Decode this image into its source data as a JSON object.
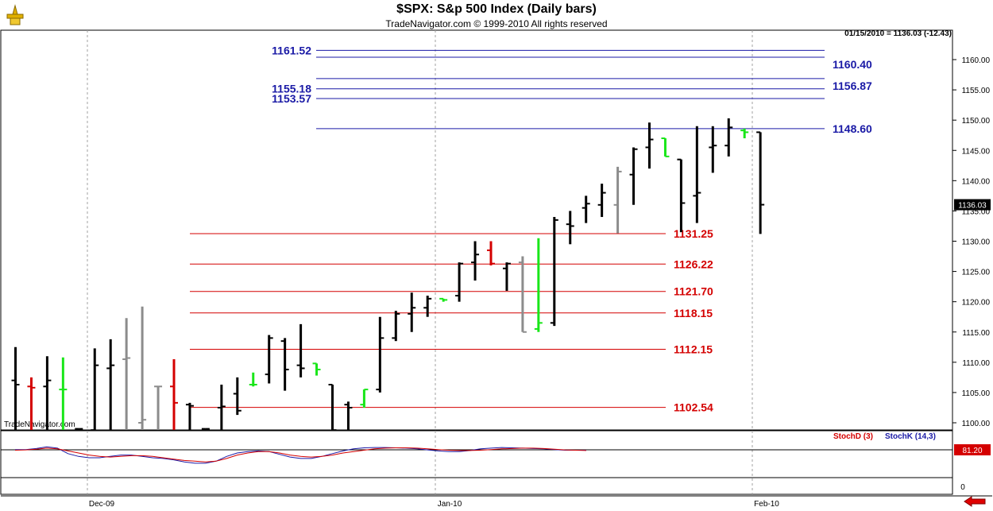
{
  "header": {
    "title": "$SPX:  S&p 500 Index  (Daily bars)",
    "subtitle": "TradeNavigator.com © 1999-2010 All rights reserved",
    "quote": "01/15/2010 = 1136.03 (-12.43)",
    "watermark": "TradeNavigator.com"
  },
  "chart_data": {
    "type": "ohlc",
    "ylim": [
      1098,
      1166
    ],
    "yticks": [
      "1100.00",
      "1105.00",
      "1110.00",
      "1115.00",
      "1120.00",
      "1125.00",
      "1130.00",
      "1135.00",
      "1140.00",
      "1145.00",
      "1150.00",
      "1155.00",
      "1160.00"
    ],
    "xlabels": [
      "Dec-09",
      "Jan-10",
      "Feb-10"
    ],
    "last_price_label": "1136.03",
    "bars": [
      {
        "o": 1107,
        "h": 1112.5,
        "l": 1098,
        "c": 1106.3,
        "color": "black"
      },
      {
        "o": 1106,
        "h": 1107.5,
        "l": 1098,
        "c": 1105.8,
        "color": "red"
      },
      {
        "o": 1106,
        "h": 1111,
        "l": 1098,
        "c": 1107,
        "color": "black"
      },
      {
        "o": 1105.5,
        "h": 1110.8,
        "l": 1098,
        "c": 1105.5,
        "color": "green"
      },
      {
        "o": 1099,
        "h": 1099,
        "l": 1098,
        "c": 1099,
        "color": "black"
      },
      {
        "o": 1098.8,
        "h": 1112.3,
        "l": 1098,
        "c": 1109.5,
        "color": "black"
      },
      {
        "o": 1109,
        "h": 1113.8,
        "l": 1098,
        "c": 1109.5,
        "color": "black"
      },
      {
        "o": 1110.5,
        "h": 1117.3,
        "l": 1098,
        "c": 1110.7,
        "color": "gray"
      },
      {
        "o": 1100,
        "h": 1119.2,
        "l": 1098,
        "c": 1100.5,
        "color": "gray"
      },
      {
        "o": 1106,
        "h": 1106,
        "l": 1098,
        "c": 1106,
        "color": "gray"
      },
      {
        "o": 1106,
        "h": 1110.5,
        "l": 1098,
        "c": 1103.3,
        "color": "red"
      },
      {
        "o": 1103,
        "h": 1103.3,
        "l": 1098,
        "c": 1102.8,
        "color": "black"
      },
      {
        "o": 1099,
        "h": 1099,
        "l": 1098,
        "c": 1099,
        "color": "black"
      },
      {
        "o": 1102.5,
        "h": 1106.3,
        "l": 1098,
        "c": 1102.7,
        "color": "black"
      },
      {
        "o": 1104.8,
        "h": 1107.5,
        "l": 1101.3,
        "c": 1102,
        "color": "black"
      },
      {
        "o": 1106.3,
        "h": 1108.3,
        "l": 1106,
        "c": 1106.3,
        "color": "green"
      },
      {
        "o": 1108,
        "h": 1114.5,
        "l": 1106.5,
        "c": 1114,
        "color": "black"
      },
      {
        "o": 1113.5,
        "h": 1114,
        "l": 1105.3,
        "c": 1108.8,
        "color": "black"
      },
      {
        "o": 1109.5,
        "h": 1116.3,
        "l": 1107.5,
        "c": 1109,
        "color": "black"
      },
      {
        "o": 1109.8,
        "h": 1109.8,
        "l": 1107.8,
        "c": 1108.8,
        "color": "green"
      },
      {
        "o": 1106.3,
        "h": 1106.3,
        "l": 1098,
        "c": 1098.8,
        "color": "black"
      },
      {
        "o": 1103,
        "h": 1103.5,
        "l": 1098,
        "c": 1102.5,
        "color": "black"
      },
      {
        "o": 1103,
        "h": 1105.5,
        "l": 1102.5,
        "c": 1105.5,
        "color": "green"
      },
      {
        "o": 1105.5,
        "h": 1117.5,
        "l": 1105,
        "c": 1114,
        "color": "black"
      },
      {
        "o": 1114,
        "h": 1118.5,
        "l": 1113.5,
        "c": 1118,
        "color": "black"
      },
      {
        "o": 1118,
        "h": 1121.5,
        "l": 1115,
        "c": 1119,
        "color": "black"
      },
      {
        "o": 1119,
        "h": 1121,
        "l": 1117.5,
        "c": 1120.5,
        "color": "black"
      },
      {
        "o": 1120.5,
        "h": 1120.5,
        "l": 1120,
        "c": 1120.3,
        "color": "green"
      },
      {
        "o": 1121,
        "h": 1126.5,
        "l": 1120,
        "c": 1126.3,
        "color": "black"
      },
      {
        "o": 1126.5,
        "h": 1130,
        "l": 1123.5,
        "c": 1127.8,
        "color": "black"
      },
      {
        "o": 1128.5,
        "h": 1130,
        "l": 1126,
        "c": 1126.3,
        "color": "red"
      },
      {
        "o": 1125.5,
        "h": 1126.5,
        "l": 1121.8,
        "c": 1126.3,
        "color": "black"
      },
      {
        "o": 1126.5,
        "h": 1127.5,
        "l": 1115,
        "c": 1115,
        "color": "gray"
      },
      {
        "o": 1115.5,
        "h": 1130.5,
        "l": 1115,
        "c": 1116.5,
        "color": "green"
      },
      {
        "o": 1116.5,
        "h": 1134,
        "l": 1116,
        "c": 1133.5,
        "color": "black"
      },
      {
        "o": 1132.8,
        "h": 1135,
        "l": 1129.5,
        "c": 1132.5,
        "color": "black"
      },
      {
        "o": 1135.5,
        "h": 1137.5,
        "l": 1133,
        "c": 1136.2,
        "color": "black"
      },
      {
        "o": 1136,
        "h": 1139.5,
        "l": 1134,
        "c": 1138,
        "color": "black"
      },
      {
        "o": 1136,
        "h": 1142.3,
        "l": 1131.3,
        "c": 1141.5,
        "color": "gray"
      },
      {
        "o": 1141,
        "h": 1145.5,
        "l": 1136,
        "c": 1145.2,
        "color": "black"
      },
      {
        "o": 1145.5,
        "h": 1149.6,
        "l": 1142,
        "c": 1146.8,
        "color": "black"
      },
      {
        "o": 1147,
        "h": 1147,
        "l": 1144,
        "c": 1144,
        "color": "green"
      },
      {
        "o": 1143.5,
        "h": 1143.5,
        "l": 1131.5,
        "c": 1136.3,
        "color": "black"
      },
      {
        "o": 1137.5,
        "h": 1149,
        "l": 1133,
        "c": 1138,
        "color": "black"
      },
      {
        "o": 1145.5,
        "h": 1149,
        "l": 1141.3,
        "c": 1145.8,
        "color": "black"
      },
      {
        "o": 1145.8,
        "h": 1150.3,
        "l": 1144,
        "c": 1148.8,
        "color": "black"
      },
      {
        "o": 1148.3,
        "h": 1148.6,
        "l": 1147,
        "c": 1148,
        "color": "green"
      },
      {
        "o": 1148,
        "h": 1148,
        "l": 1131.2,
        "c": 1136.03,
        "color": "black"
      }
    ],
    "levels": [
      {
        "value": 1161.52,
        "label": "1161.52",
        "color": "blue",
        "label_side": "left"
      },
      {
        "value": 1160.4,
        "label": "1160.40",
        "color": "blue",
        "label_side": "right"
      },
      {
        "value": 1156.87,
        "label": "1156.87",
        "color": "blue",
        "label_side": "right"
      },
      {
        "value": 1155.18,
        "label": "1155.18",
        "color": "blue",
        "label_side": "left"
      },
      {
        "value": 1153.57,
        "label": "1153.57",
        "color": "blue",
        "label_side": "left"
      },
      {
        "value": 1148.6,
        "label": "1148.60",
        "color": "blue",
        "label_side": "right"
      },
      {
        "value": 1131.25,
        "label": "1131.25",
        "color": "red",
        "label_side": "right"
      },
      {
        "value": 1126.22,
        "label": "1126.22",
        "color": "red",
        "label_side": "right"
      },
      {
        "value": 1121.7,
        "label": "1121.70",
        "color": "red",
        "label_side": "right"
      },
      {
        "value": 1118.15,
        "label": "1118.15",
        "color": "red",
        "label_side": "right"
      },
      {
        "value": 1112.15,
        "label": "1112.15",
        "color": "red",
        "label_side": "right"
      },
      {
        "value": 1102.54,
        "label": "1102.54",
        "color": "red",
        "label_side": "right"
      }
    ],
    "stochastic": {
      "stochd_label": "StochD (3)",
      "stochk_label": "StochK (14,3)",
      "value_label": "81.20",
      "zero_label": "0",
      "ylim": [
        0,
        120
      ],
      "stochd": [
        80,
        81,
        83,
        86,
        84,
        78,
        72,
        66,
        62,
        60,
        62,
        64,
        64,
        62,
        58,
        54,
        50,
        48,
        46,
        48,
        56,
        66,
        72,
        76,
        76,
        72,
        66,
        62,
        60,
        62,
        66,
        72,
        76,
        80,
        84,
        86,
        87,
        87,
        86,
        84,
        82,
        80,
        79,
        79,
        80,
        82,
        84,
        85,
        86,
        86,
        85,
        83,
        81,
        80,
        79
      ],
      "stochk": [
        82,
        82,
        85,
        90,
        86,
        70,
        62,
        58,
        58,
        62,
        66,
        66,
        62,
        58,
        56,
        52,
        46,
        42,
        42,
        48,
        62,
        72,
        76,
        78,
        76,
        68,
        60,
        56,
        56,
        62,
        70,
        78,
        84,
        87,
        88,
        88,
        87,
        86,
        84,
        81,
        78,
        76,
        76,
        79,
        84,
        86,
        88,
        87,
        86,
        85,
        84,
        82,
        80,
        80,
        80
      ]
    },
    "grid": "vertical-dashed",
    "colors": {
      "blue": "#1a1aa6",
      "red": "#d40000",
      "green": "#19e619",
      "gray": "#8c8c8c",
      "black": "#000000"
    }
  }
}
